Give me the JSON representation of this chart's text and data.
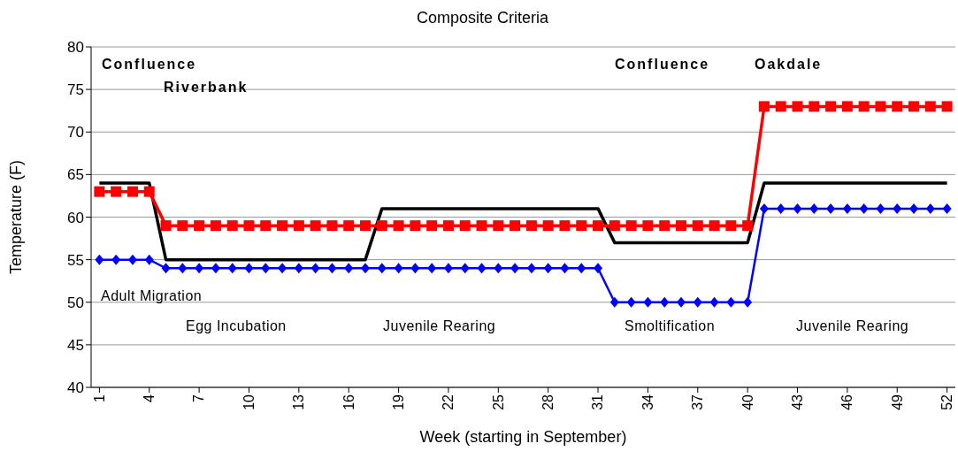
{
  "chart_data": {
    "type": "line",
    "title": "Composite Criteria",
    "xlabel": "Week (starting in September)",
    "ylabel": "Temperature (F)",
    "x": [
      1,
      2,
      3,
      4,
      5,
      6,
      7,
      8,
      9,
      10,
      11,
      12,
      13,
      14,
      15,
      16,
      17,
      18,
      19,
      20,
      21,
      22,
      23,
      24,
      25,
      26,
      27,
      28,
      29,
      30,
      31,
      32,
      33,
      34,
      35,
      36,
      37,
      38,
      39,
      40,
      41,
      42,
      43,
      44,
      45,
      46,
      47,
      48,
      49,
      50,
      51,
      52
    ],
    "series": [
      {
        "color": "#000000",
        "marker": "none",
        "values": [
          64,
          64,
          64,
          64,
          55,
          55,
          55,
          55,
          55,
          55,
          55,
          55,
          55,
          55,
          55,
          55,
          55,
          61,
          61,
          61,
          61,
          61,
          61,
          61,
          61,
          61,
          61,
          61,
          61,
          61,
          61,
          57,
          57,
          57,
          57,
          57,
          57,
          57,
          57,
          57,
          64,
          64,
          64,
          64,
          64,
          64,
          64,
          64,
          64,
          64,
          64,
          64
        ]
      },
      {
        "color": "#ff0000",
        "marker": "square",
        "values": [
          63,
          63,
          63,
          63,
          59,
          59,
          59,
          59,
          59,
          59,
          59,
          59,
          59,
          59,
          59,
          59,
          59,
          59,
          59,
          59,
          59,
          59,
          59,
          59,
          59,
          59,
          59,
          59,
          59,
          59,
          59,
          59,
          59,
          59,
          59,
          59,
          59,
          59,
          59,
          59,
          73,
          73,
          73,
          73,
          73,
          73,
          73,
          73,
          73,
          73,
          73,
          73
        ]
      },
      {
        "color": "#0000ff",
        "marker": "diamond",
        "values": [
          55,
          55,
          55,
          55,
          54,
          54,
          54,
          54,
          54,
          54,
          54,
          54,
          54,
          54,
          54,
          54,
          54,
          54,
          54,
          54,
          54,
          54,
          54,
          54,
          54,
          54,
          54,
          54,
          54,
          54,
          54,
          50,
          50,
          50,
          50,
          50,
          50,
          50,
          50,
          50,
          61,
          61,
          61,
          61,
          61,
          61,
          61,
          61,
          61,
          61,
          61,
          61
        ]
      }
    ],
    "xlim": [
      0.5,
      52.5
    ],
    "xticks": [
      1,
      4,
      7,
      10,
      13,
      16,
      19,
      22,
      25,
      28,
      31,
      34,
      37,
      40,
      43,
      46,
      49,
      52
    ],
    "ylim": [
      40,
      80
    ],
    "yticks": [
      40,
      45,
      50,
      55,
      60,
      65,
      70,
      75,
      80
    ],
    "grid": "y",
    "legend": false,
    "annotations": [
      "Confluence",
      "Riverbank",
      "Confluence",
      "Oakdale",
      "Adult Migration",
      "Egg Incubation",
      "Juvenile Rearing",
      "Smoltification",
      "Juvenile Rearing"
    ]
  }
}
